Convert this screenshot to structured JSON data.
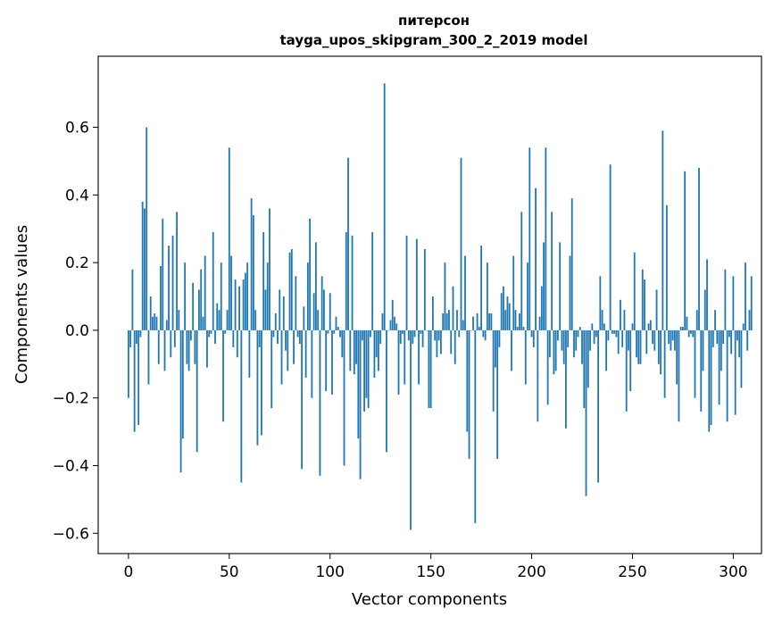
{
  "chart_data": {
    "type": "bar",
    "title": "питерсон",
    "subtitle": "tayga_upos_skipgram_300_2_2019 model",
    "xlabel": "Vector components",
    "ylabel": "Components values",
    "xlim": [
      -15,
      314
    ],
    "ylim": [
      -0.66,
      0.81
    ],
    "xticks": [
      0,
      50,
      100,
      150,
      200,
      250,
      300
    ],
    "yticks": [
      -0.6,
      -0.4,
      -0.2,
      0.0,
      0.2,
      0.4,
      0.6
    ],
    "ytick_labels": [
      "−0.6",
      "−0.4",
      "−0.2",
      "0.0",
      "0.2",
      "0.4",
      "0.6"
    ],
    "grid": false,
    "legend": "none",
    "bar_color": "#1f77b4",
    "values": [
      -0.2,
      -0.05,
      0.18,
      -0.3,
      -0.04,
      -0.28,
      -0.02,
      0.38,
      0.36,
      0.6,
      -0.16,
      0.1,
      0.04,
      0.05,
      0.04,
      -0.1,
      0.19,
      0.33,
      -0.12,
      0.03,
      0.25,
      -0.08,
      0.28,
      -0.05,
      0.35,
      0.06,
      -0.42,
      -0.32,
      0.2,
      -0.1,
      -0.12,
      -0.03,
      0.14,
      -0.1,
      -0.36,
      0.12,
      0.18,
      0.04,
      0.22,
      -0.11,
      -0.02,
      -0.01,
      0.29,
      -0.04,
      0.08,
      0.06,
      0.2,
      -0.27,
      -0.01,
      0.06,
      0.54,
      0.22,
      -0.05,
      0.15,
      -0.08,
      0.13,
      -0.45,
      0.15,
      0.17,
      0.2,
      -0.14,
      0.39,
      0.34,
      0.06,
      -0.34,
      -0.05,
      -0.31,
      0.29,
      0.12,
      0.2,
      0.36,
      -0.23,
      -0.02,
      0.05,
      -0.04,
      0.12,
      -0.16,
      0.1,
      -0.06,
      -0.12,
      0.23,
      0.24,
      -0.1,
      0.16,
      -0.02,
      -0.04,
      -0.41,
      0.07,
      -0.14,
      0.2,
      0.33,
      -0.2,
      0.11,
      0.26,
      0.06,
      -0.43,
      0.16,
      0.12,
      -0.18,
      -0.01,
      0.11,
      -0.19,
      -0.01,
      0.04,
      0.01,
      -0.02,
      -0.08,
      -0.4,
      0.29,
      0.51,
      -0.12,
      0.28,
      -0.13,
      -0.1,
      -0.32,
      -0.44,
      -0.03,
      -0.24,
      -0.2,
      -0.23,
      -0.02,
      0.29,
      -0.14,
      -0.08,
      -0.12,
      -0.04,
      0.05,
      0.73,
      -0.36,
      0.0,
      0.03,
      0.09,
      0.04,
      0.02,
      -0.19,
      -0.04,
      -0.01,
      -0.16,
      0.28,
      -0.03,
      -0.59,
      -0.04,
      -0.02,
      0.27,
      -0.16,
      -0.01,
      -0.05,
      0.24,
      0.0,
      -0.23,
      -0.23,
      0.1,
      -0.03,
      -0.08,
      -0.03,
      -0.07,
      0.05,
      0.2,
      0.05,
      0.06,
      -0.07,
      0.13,
      -0.1,
      0.06,
      -0.02,
      0.51,
      0.03,
      0.22,
      -0.3,
      -0.38,
      0.0,
      0.04,
      -0.57,
      0.05,
      0.01,
      0.25,
      -0.02,
      -0.03,
      0.2,
      0.05,
      0.05,
      -0.24,
      -0.11,
      -0.38,
      -0.05,
      0.11,
      0.13,
      0.06,
      0.1,
      0.08,
      -0.12,
      0.22,
      0.06,
      0.01,
      0.05,
      0.35,
      0.01,
      -0.16,
      0.2,
      0.54,
      -0.02,
      -0.05,
      0.42,
      -0.27,
      0.04,
      0.13,
      0.26,
      0.54,
      -0.22,
      -0.08,
      0.35,
      -0.13,
      -0.12,
      -0.03,
      0.26,
      -0.06,
      -0.1,
      -0.29,
      -0.05,
      0.22,
      0.39,
      -0.08,
      -0.06,
      -0.02,
      0.01,
      -0.1,
      -0.23,
      -0.49,
      -0.17,
      -0.06,
      0.02,
      -0.04,
      -0.02,
      -0.45,
      0.16,
      0.06,
      0.02,
      -0.12,
      -0.03,
      0.49,
      -0.01,
      -0.01,
      -0.02,
      -0.07,
      0.09,
      -0.05,
      0.06,
      -0.24,
      -0.06,
      -0.18,
      0.02,
      0.23,
      -0.08,
      -0.1,
      -0.1,
      0.18,
      0.15,
      -0.07,
      0.02,
      0.03,
      -0.04,
      -0.06,
      0.12,
      -0.1,
      -0.13,
      0.59,
      -0.2,
      0.37,
      -0.04,
      -0.06,
      -0.03,
      -0.06,
      -0.16,
      -0.27,
      0.01,
      0.01,
      0.47,
      0.04,
      -0.02,
      -0.01,
      -0.02,
      -0.2,
      0.06,
      0.48,
      -0.24,
      -0.12,
      0.12,
      0.21,
      -0.3,
      -0.28,
      -0.05,
      0.06,
      -0.04,
      -0.22,
      -0.12,
      -0.04,
      0.18,
      -0.27,
      -0.02,
      -0.07,
      0.16,
      -0.25,
      -0.03,
      -0.08,
      -0.17,
      0.02,
      0.2,
      -0.06,
      0.06,
      0.16
    ]
  }
}
